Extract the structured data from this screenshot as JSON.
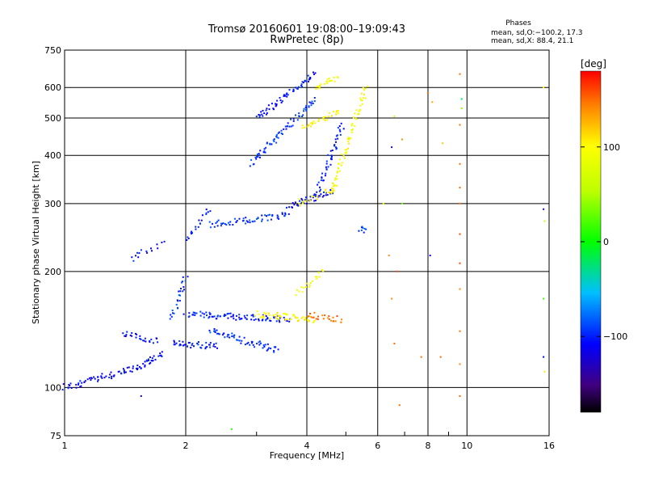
{
  "chart_data": {
    "type": "scatter",
    "title": "Tromsø 20160601 19:08:00–19:09:43",
    "subtitle": "RwPretec (8p)",
    "xlabel": "Frequency [MHz]",
    "ylabel": "Stationary phase Virtual Height [km]",
    "x_scale": "log",
    "y_scale": "log",
    "xlim": [
      1,
      16
    ],
    "ylim": [
      75,
      750
    ],
    "x_ticks": [
      1,
      2,
      4,
      6,
      8,
      10,
      16
    ],
    "x_tick_labels": [
      "1",
      "2",
      "4",
      "6",
      "8",
      "10",
      "16"
    ],
    "y_ticks": [
      75,
      100,
      200,
      300,
      400,
      500,
      600,
      750
    ],
    "y_tick_labels": [
      "75",
      "100",
      "200",
      "300",
      "400",
      "500",
      "600",
      "750"
    ],
    "grid": true,
    "phase_info": {
      "heading": "Phases",
      "line1": "mean, sd,O:−100.2, 17.3",
      "line2": "mean, sd,X:  88.4, 21.1"
    },
    "colorbar": {
      "label": "[deg]",
      "range": [
        -180,
        180
      ],
      "ticks": [
        100,
        0,
        -100
      ],
      "tick_labels": [
        "100",
        "0",
        "−100"
      ]
    },
    "traces": [
      {
        "x0": 1.0,
        "x1": 1.5,
        "h0": 100,
        "h1": 112,
        "phase": -110,
        "n": 60
      },
      {
        "x0": 1.5,
        "x1": 1.75,
        "h0": 112,
        "h1": 122,
        "phase": -105,
        "n": 30
      },
      {
        "x0": 1.4,
        "x1": 1.7,
        "h0": 138,
        "h1": 132,
        "phase": -108,
        "n": 25
      },
      {
        "x0": 1.85,
        "x1": 2.4,
        "h0": 130,
        "h1": 128,
        "phase": -100,
        "n": 40
      },
      {
        "x0": 1.85,
        "x1": 2.0,
        "h0": 150,
        "h1": 195,
        "phase": -95,
        "n": 25
      },
      {
        "x0": 2.0,
        "x1": 3.6,
        "h0": 155,
        "h1": 150,
        "phase": -100,
        "n": 90
      },
      {
        "x0": 2.3,
        "x1": 3.4,
        "h0": 140,
        "h1": 125,
        "phase": -95,
        "n": 60
      },
      {
        "x0": 3.0,
        "x1": 4.2,
        "h0": 155,
        "h1": 150,
        "phase": 100,
        "n": 60
      },
      {
        "x0": 4.0,
        "x1": 4.9,
        "h0": 155,
        "h1": 150,
        "phase": 150,
        "n": 25
      },
      {
        "x0": 3.8,
        "x1": 4.4,
        "h0": 175,
        "h1": 200,
        "phase": 95,
        "n": 20
      },
      {
        "x0": 1.45,
        "x1": 1.75,
        "h0": 215,
        "h1": 235,
        "phase": -105,
        "n": 15
      },
      {
        "x0": 2.0,
        "x1": 2.3,
        "h0": 240,
        "h1": 290,
        "phase": -100,
        "n": 20
      },
      {
        "x0": 2.3,
        "x1": 3.6,
        "h0": 265,
        "h1": 280,
        "phase": -95,
        "n": 60
      },
      {
        "x0": 3.6,
        "x1": 4.6,
        "h0": 295,
        "h1": 320,
        "phase": -110,
        "n": 40
      },
      {
        "x0": 4.6,
        "x1": 5.6,
        "h0": 320,
        "h1": 600,
        "phase": 95,
        "n": 70
      },
      {
        "x0": 3.8,
        "x1": 4.8,
        "h0": 300,
        "h1": 330,
        "phase": 100,
        "n": 25
      },
      {
        "x0": 2.9,
        "x1": 4.2,
        "h0": 380,
        "h1": 560,
        "phase": -95,
        "n": 70
      },
      {
        "x0": 4.2,
        "x1": 4.9,
        "h0": 310,
        "h1": 480,
        "phase": -100,
        "n": 50
      },
      {
        "x0": 3.9,
        "x1": 4.8,
        "h0": 470,
        "h1": 520,
        "phase": 100,
        "n": 30
      },
      {
        "x0": 3.0,
        "x1": 4.2,
        "h0": 500,
        "h1": 650,
        "phase": -105,
        "n": 60
      },
      {
        "x0": 4.2,
        "x1": 4.8,
        "h0": 600,
        "h1": 640,
        "phase": 95,
        "n": 20
      },
      {
        "x0": 5.45,
        "x1": 5.55,
        "h0": 255,
        "h1": 260,
        "phase": -90,
        "n": 8
      }
    ],
    "scatter_points": [
      {
        "x": 6.6,
        "h": 505,
        "phase": 60
      },
      {
        "x": 6.5,
        "h": 420,
        "phase": -130
      },
      {
        "x": 6.9,
        "h": 440,
        "phase": 140
      },
      {
        "x": 6.2,
        "h": 300,
        "phase": 80
      },
      {
        "x": 6.4,
        "h": 220,
        "phase": 140
      },
      {
        "x": 6.7,
        "h": 200,
        "phase": 160
      },
      {
        "x": 6.5,
        "h": 170,
        "phase": 140
      },
      {
        "x": 6.6,
        "h": 130,
        "phase": 150
      },
      {
        "x": 6.8,
        "h": 90,
        "phase": 150
      },
      {
        "x": 6.9,
        "h": 300,
        "phase": 30
      },
      {
        "x": 8.0,
        "h": 580,
        "phase": 150
      },
      {
        "x": 8.2,
        "h": 550,
        "phase": 130
      },
      {
        "x": 8.1,
        "h": 220,
        "phase": -120
      },
      {
        "x": 7.7,
        "h": 120,
        "phase": 150
      },
      {
        "x": 8.7,
        "h": 430,
        "phase": 120
      },
      {
        "x": 8.6,
        "h": 120,
        "phase": 150
      },
      {
        "x": 9.6,
        "h": 650,
        "phase": 150
      },
      {
        "x": 9.6,
        "h": 480,
        "phase": 150
      },
      {
        "x": 9.6,
        "h": 380,
        "phase": 150
      },
      {
        "x": 9.6,
        "h": 330,
        "phase": 150
      },
      {
        "x": 9.6,
        "h": 300,
        "phase": 150
      },
      {
        "x": 9.6,
        "h": 250,
        "phase": 160
      },
      {
        "x": 9.6,
        "h": 210,
        "phase": 160
      },
      {
        "x": 9.6,
        "h": 180,
        "phase": 140
      },
      {
        "x": 9.6,
        "h": 140,
        "phase": 150
      },
      {
        "x": 9.6,
        "h": 115,
        "phase": 140
      },
      {
        "x": 9.6,
        "h": 95,
        "phase": 150
      },
      {
        "x": 9.7,
        "h": 560,
        "phase": -20
      },
      {
        "x": 9.7,
        "h": 530,
        "phase": 40
      },
      {
        "x": 15.5,
        "h": 600,
        "phase": 100
      },
      {
        "x": 15.5,
        "h": 290,
        "phase": -130
      },
      {
        "x": 15.6,
        "h": 270,
        "phase": 60
      },
      {
        "x": 15.5,
        "h": 170,
        "phase": 20
      },
      {
        "x": 15.5,
        "h": 120,
        "phase": -110
      },
      {
        "x": 15.6,
        "h": 110,
        "phase": 110
      },
      {
        "x": 2.6,
        "h": 78,
        "phase": 10
      },
      {
        "x": 1.55,
        "h": 95,
        "phase": -140
      }
    ]
  }
}
